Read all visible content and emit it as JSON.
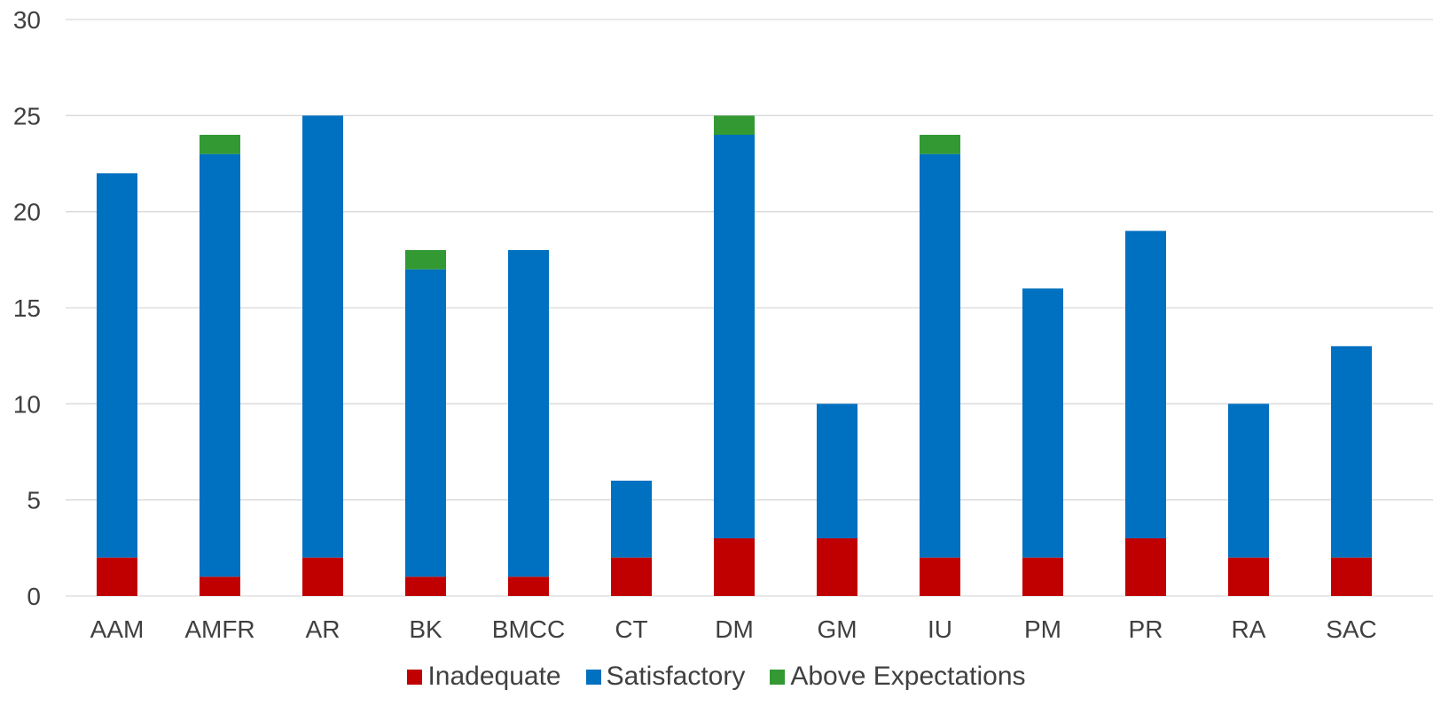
{
  "chart_data": {
    "type": "bar",
    "stacked": true,
    "title": "",
    "xlabel": "",
    "ylabel": "",
    "categories": [
      "AAM",
      "AMFR",
      "AR",
      "BK",
      "BMCC",
      "CT",
      "DM",
      "GM",
      "IU",
      "PM",
      "PR",
      "RA",
      "SAC"
    ],
    "series": [
      {
        "name": "Inadequate",
        "color": "#C00000",
        "values": [
          2,
          1,
          2,
          1,
          1,
          2,
          3,
          3,
          2,
          2,
          3,
          2,
          2
        ]
      },
      {
        "name": "Satisfactory",
        "color": "#0070C0",
        "values": [
          20,
          22,
          23,
          16,
          17,
          4,
          21,
          7,
          21,
          14,
          16,
          8,
          11
        ]
      },
      {
        "name": "Above Expectations",
        "color": "#339933",
        "values": [
          0,
          1,
          0,
          1,
          0,
          0,
          1,
          0,
          1,
          0,
          0,
          0,
          0
        ]
      }
    ],
    "ylim": [
      0,
      30
    ],
    "yticks": [
      0,
      5,
      10,
      15,
      20,
      25,
      30
    ],
    "grid": true,
    "legend_position": "bottom"
  }
}
